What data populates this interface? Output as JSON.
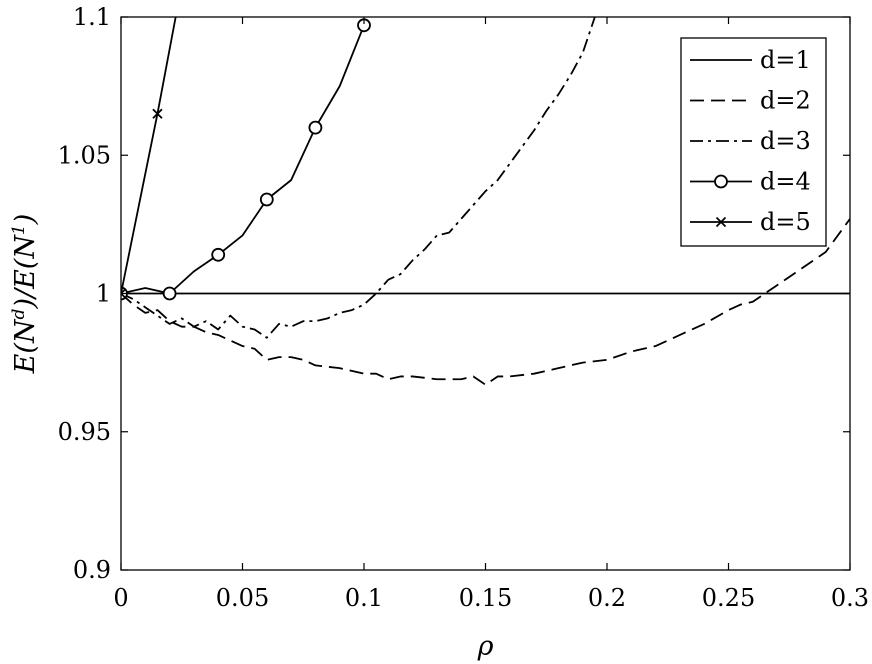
{
  "chart_data": {
    "type": "line",
    "title": "",
    "xlabel": "ρ",
    "ylabel_parts": [
      "E(N",
      "d",
      ")/E(N",
      "1",
      ")"
    ],
    "xlim": [
      0,
      0.3
    ],
    "ylim": [
      0.9,
      1.1
    ],
    "xticks": [
      0,
      0.05,
      0.1,
      0.15,
      0.2,
      0.25,
      0.3
    ],
    "xtick_labels": [
      "0",
      "0.05",
      "0.1",
      "0.15",
      "0.2",
      "0.25",
      "0.3"
    ],
    "yticks": [
      0.9,
      0.95,
      1,
      1.05,
      1.1
    ],
    "ytick_labels": [
      "0.9",
      "0.95",
      "1",
      "1.05",
      "1.1"
    ],
    "grid": false,
    "legend_position": "top-right",
    "series": [
      {
        "name": "d=1",
        "style": "solid",
        "marker": "none",
        "x": [
          0,
          0.3
        ],
        "y": [
          1.0,
          1.0
        ]
      },
      {
        "name": "d=2",
        "style": "dashed",
        "marker": "none",
        "x": [
          0,
          0.005,
          0.01,
          0.015,
          0.02,
          0.025,
          0.03,
          0.035,
          0.04,
          0.045,
          0.05,
          0.055,
          0.06,
          0.065,
          0.07,
          0.075,
          0.08,
          0.09,
          0.1,
          0.105,
          0.11,
          0.115,
          0.12,
          0.13,
          0.14,
          0.145,
          0.15,
          0.155,
          0.16,
          0.17,
          0.18,
          0.19,
          0.2,
          0.21,
          0.22,
          0.23,
          0.24,
          0.25,
          0.255,
          0.26,
          0.27,
          0.28,
          0.29,
          0.3
        ],
        "y": [
          1.0,
          0.996,
          0.993,
          0.994,
          0.99,
          0.988,
          0.988,
          0.986,
          0.985,
          0.983,
          0.981,
          0.98,
          0.976,
          0.977,
          0.977,
          0.976,
          0.974,
          0.973,
          0.971,
          0.971,
          0.969,
          0.97,
          0.97,
          0.969,
          0.969,
          0.97,
          0.967,
          0.97,
          0.97,
          0.971,
          0.973,
          0.975,
          0.976,
          0.979,
          0.981,
          0.985,
          0.989,
          0.994,
          0.996,
          0.997,
          1.003,
          1.009,
          1.015,
          1.027
        ]
      },
      {
        "name": "d=3",
        "style": "dash-dot",
        "marker": "none",
        "x": [
          0,
          0.005,
          0.01,
          0.015,
          0.02,
          0.025,
          0.03,
          0.035,
          0.04,
          0.045,
          0.05,
          0.055,
          0.06,
          0.065,
          0.07,
          0.075,
          0.08,
          0.085,
          0.09,
          0.095,
          0.1,
          0.105,
          0.11,
          0.115,
          0.12,
          0.125,
          0.13,
          0.135,
          0.14,
          0.145,
          0.15,
          0.155,
          0.16,
          0.165,
          0.17,
          0.175,
          0.18,
          0.185,
          0.19,
          0.195
        ],
        "y": [
          1.0,
          0.998,
          0.995,
          0.992,
          0.989,
          0.991,
          0.988,
          0.99,
          0.987,
          0.992,
          0.988,
          0.987,
          0.984,
          0.989,
          0.988,
          0.99,
          0.99,
          0.991,
          0.993,
          0.994,
          0.996,
          1.0,
          1.005,
          1.007,
          1.012,
          1.016,
          1.021,
          1.022,
          1.027,
          1.032,
          1.037,
          1.041,
          1.047,
          1.053,
          1.059,
          1.066,
          1.072,
          1.079,
          1.087,
          1.1
        ]
      },
      {
        "name": "d=4",
        "style": "solid",
        "marker": "circle",
        "x": [
          0,
          0.01,
          0.02,
          0.03,
          0.04,
          0.05,
          0.06,
          0.07,
          0.08,
          0.09,
          0.1
        ],
        "y": [
          1.0,
          1.002,
          1.0,
          1.008,
          1.014,
          1.021,
          1.034,
          1.041,
          1.06,
          1.075,
          1.097
        ],
        "marker_x": [
          0,
          0.02,
          0.04,
          0.06,
          0.08,
          0.1
        ],
        "marker_y": [
          1.0,
          1.0,
          1.014,
          1.034,
          1.06,
          1.097
        ]
      },
      {
        "name": "d=5",
        "style": "solid",
        "marker": "x",
        "x": [
          0,
          0.015,
          0.0225
        ],
        "y": [
          1.0,
          1.065,
          1.1
        ],
        "marker_x": [
          0,
          0.015
        ],
        "marker_y": [
          1.0,
          1.065
        ]
      }
    ]
  }
}
